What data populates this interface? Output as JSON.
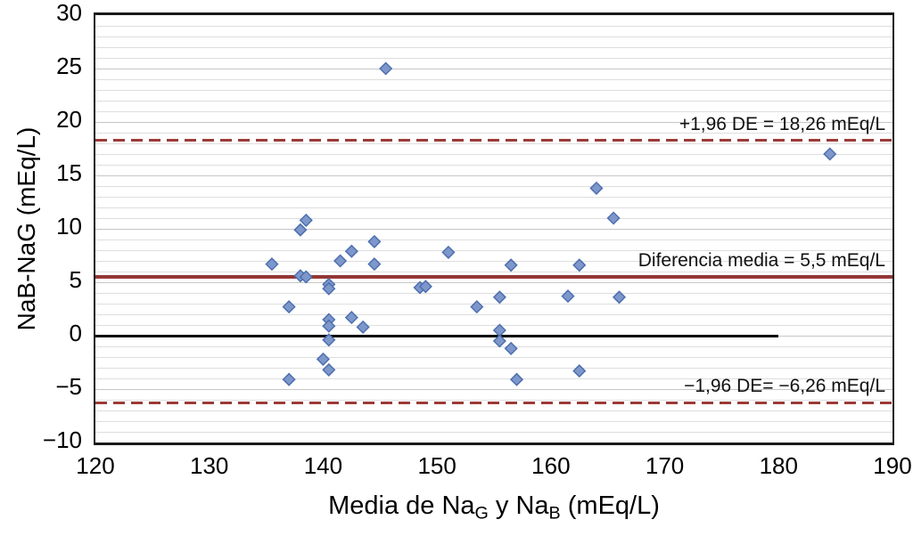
{
  "chart_data": {
    "type": "scatter",
    "title": "",
    "ylabel": "NaB-NaG (mEq/L)",
    "xlabel_parts": [
      {
        "t": "Media de Na"
      },
      {
        "t": "G",
        "sub": true
      },
      {
        "t": " y Na"
      },
      {
        "t": "B",
        "sub": true
      },
      {
        "t": " (mEq/L)"
      }
    ],
    "xlim": [
      120,
      190
    ],
    "ylim": [
      -10,
      30
    ],
    "x_ticks": [
      120,
      130,
      140,
      150,
      160,
      170,
      180,
      190
    ],
    "x_tick_labels": [
      "120",
      "130",
      "140",
      "150",
      "160",
      "170",
      "180",
      "190"
    ],
    "y_ticks": [
      30,
      25,
      20,
      15,
      10,
      5,
      0,
      -5,
      -10
    ],
    "y_tick_labels": [
      "30",
      "25",
      "20",
      "15",
      "10",
      "5",
      "0",
      "−5",
      "−10"
    ],
    "minor_grid_step": 1,
    "grid": true,
    "legend": "none",
    "marker": {
      "shape": "diamond",
      "fill": "#7e97cb",
      "stroke": "#4d6faf",
      "size": 13
    },
    "line_color": "#9c3a38",
    "points": [
      [
        145.5,
        25
      ],
      [
        184.5,
        17
      ],
      [
        164,
        13.8
      ],
      [
        165.5,
        11
      ],
      [
        138.5,
        10.8
      ],
      [
        138,
        9.9
      ],
      [
        144.5,
        8.8
      ],
      [
        142.5,
        7.9
      ],
      [
        151,
        7.8
      ],
      [
        141.5,
        7
      ],
      [
        135.5,
        6.7
      ],
      [
        144.5,
        6.7
      ],
      [
        156.5,
        6.6
      ],
      [
        162.5,
        6.6
      ],
      [
        138,
        5.6
      ],
      [
        138.5,
        5.5
      ],
      [
        140.5,
        4.8
      ],
      [
        140.5,
        4.4
      ],
      [
        148.5,
        4.5
      ],
      [
        149,
        4.6
      ],
      [
        137,
        2.7
      ],
      [
        153.5,
        2.7
      ],
      [
        155.5,
        3.6
      ],
      [
        161.5,
        3.7
      ],
      [
        166,
        3.6
      ],
      [
        140.5,
        1.5
      ],
      [
        142.5,
        1.7
      ],
      [
        140.5,
        0.9
      ],
      [
        143.5,
        0.8
      ],
      [
        155.5,
        0.5
      ],
      [
        140.5,
        -0.4
      ],
      [
        155.5,
        -0.5
      ],
      [
        156.5,
        -1.2
      ],
      [
        140,
        -2.2
      ],
      [
        140.5,
        -3.2
      ],
      [
        162.5,
        -3.3
      ],
      [
        137,
        -4.1
      ],
      [
        157,
        -4.1
      ]
    ],
    "lines": [
      {
        "name": "upper-limit-line",
        "value": 18.26,
        "style": "dashed",
        "color": "#9c3a38",
        "label": "+1,96 DE = 18,26 mEq/L"
      },
      {
        "name": "mean-line",
        "value": 5.5,
        "style": "solid",
        "color": "#9c3a38",
        "label": "Diferencia media = 5,5 mEq/L"
      },
      {
        "name": "lower-limit-line",
        "value": -6.26,
        "style": "dashed",
        "color": "#9c3a38",
        "label": "−1,96 DE= −6,26 mEq/L"
      },
      {
        "name": "zero-line",
        "value": 0,
        "style": "zero",
        "color": "#000000",
        "label": "",
        "x_end": 180
      }
    ]
  }
}
